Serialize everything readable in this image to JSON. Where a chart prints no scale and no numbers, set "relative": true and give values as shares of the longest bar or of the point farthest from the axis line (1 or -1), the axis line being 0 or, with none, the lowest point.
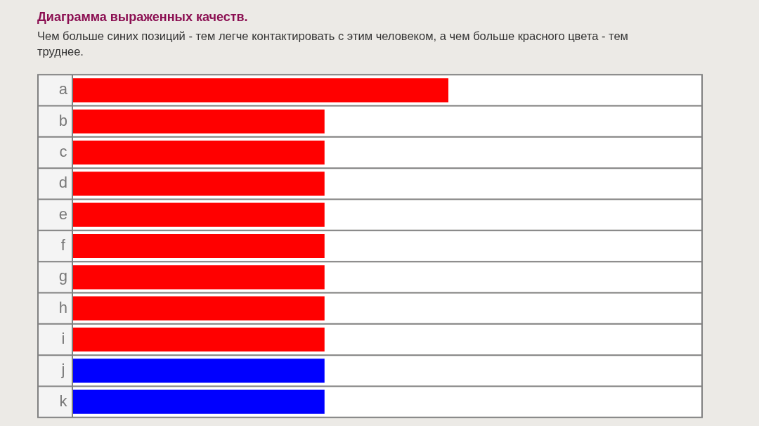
{
  "chart_data": {
    "type": "bar",
    "orientation": "horizontal",
    "relative": true,
    "title": "Диаграмма выраженных качеств.",
    "subtitle": "Чем больше синих позиций - тем легче контактировать с этим человеком, а чем больше красного цвета - тем труднее.",
    "categories": [
      "a",
      "b",
      "c",
      "d",
      "e",
      "f",
      "g",
      "h",
      "i",
      "j",
      "k"
    ],
    "values": [
      1,
      0.67,
      0.67,
      0.67,
      0.67,
      0.67,
      0.67,
      0.67,
      0.67,
      0.67,
      0.67
    ],
    "colors": [
      "#ff0000",
      "#ff0000",
      "#ff0000",
      "#ff0000",
      "#ff0000",
      "#ff0000",
      "#ff0000",
      "#ff0000",
      "#ff0000",
      "#0000ff",
      "#0000ff"
    ]
  }
}
